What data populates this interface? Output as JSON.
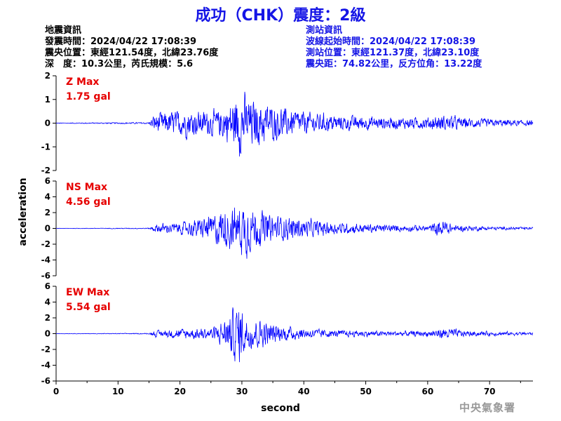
{
  "title": "成功（CHK）震度：2級",
  "quake_info": {
    "heading": "地震資訊",
    "origin_time": "發震時間：2024/04/22 17:08:39",
    "epicenter": "震央位置：東經121.54度，北緯23.76度",
    "depth_magnitude": "深　度：10.3公里，芮氏規模：5.6"
  },
  "station_info": {
    "heading": "測站資訊",
    "wave_start": "波線起始時間：2024/04/22 17:08:39",
    "location": "測站位置：東經121.37度，北緯23.10度",
    "distance_azimuth": "震央距：74.82公里，反方位角：13.22度"
  },
  "agency": "中央氣象署",
  "colors": {
    "title": "#1515e6",
    "trace": "#0000ff",
    "label": "#e60000",
    "station_text": "#1515e6"
  },
  "chart_data": {
    "type": "line",
    "xlabel": "second",
    "ylabel": "acceleration",
    "xlim": [
      0,
      77
    ],
    "xticks": [
      0,
      10,
      20,
      30,
      40,
      50,
      60,
      70
    ],
    "grid": false,
    "panels": [
      {
        "name": "Z Max",
        "max_label": "1.75 gal",
        "max": 1.75,
        "ylim": [
          -2,
          2
        ],
        "yticks": [
          -2,
          -1,
          0,
          1,
          2
        ],
        "envelope_x": [
          0,
          15,
          16,
          20,
          26,
          28,
          29.5,
          31,
          33,
          38,
          45,
          55,
          60,
          63,
          66,
          70,
          77
        ],
        "envelope_a": [
          0.02,
          0.05,
          0.55,
          0.75,
          0.7,
          1.2,
          1.75,
          1.45,
          1.2,
          0.75,
          0.45,
          0.32,
          0.35,
          0.45,
          0.3,
          0.22,
          0.15
        ]
      },
      {
        "name": "NS Max",
        "max_label": "4.56 gal",
        "max": 4.56,
        "ylim": [
          -6,
          6
        ],
        "yticks": [
          -6,
          -4,
          -2,
          0,
          2,
          4,
          6
        ],
        "envelope_x": [
          0,
          15,
          16,
          20,
          24,
          26,
          29,
          30.5,
          32,
          35,
          40,
          45,
          55,
          60,
          62.5,
          64,
          70,
          77
        ],
        "envelope_a": [
          0.03,
          0.08,
          0.7,
          1.0,
          1.8,
          2.8,
          3.6,
          4.56,
          3.4,
          2.3,
          1.6,
          1.0,
          0.55,
          0.45,
          1.7,
          0.6,
          0.3,
          0.2
        ]
      },
      {
        "name": "EW Max",
        "max_label": "5.54 gal",
        "max": 5.54,
        "ylim": [
          -6,
          6
        ],
        "yticks": [
          -6,
          -4,
          -2,
          0,
          2,
          4,
          6
        ],
        "envelope_x": [
          0,
          15,
          16,
          20,
          25,
          27,
          28.5,
          29.5,
          31,
          33,
          35,
          40,
          45,
          55,
          60,
          63,
          66,
          70,
          77
        ],
        "envelope_a": [
          0.03,
          0.08,
          0.5,
          0.8,
          1.0,
          2.0,
          4.2,
          5.54,
          2.6,
          2.6,
          1.6,
          0.9,
          0.6,
          0.4,
          0.5,
          1.0,
          0.5,
          0.35,
          0.25
        ]
      }
    ]
  }
}
